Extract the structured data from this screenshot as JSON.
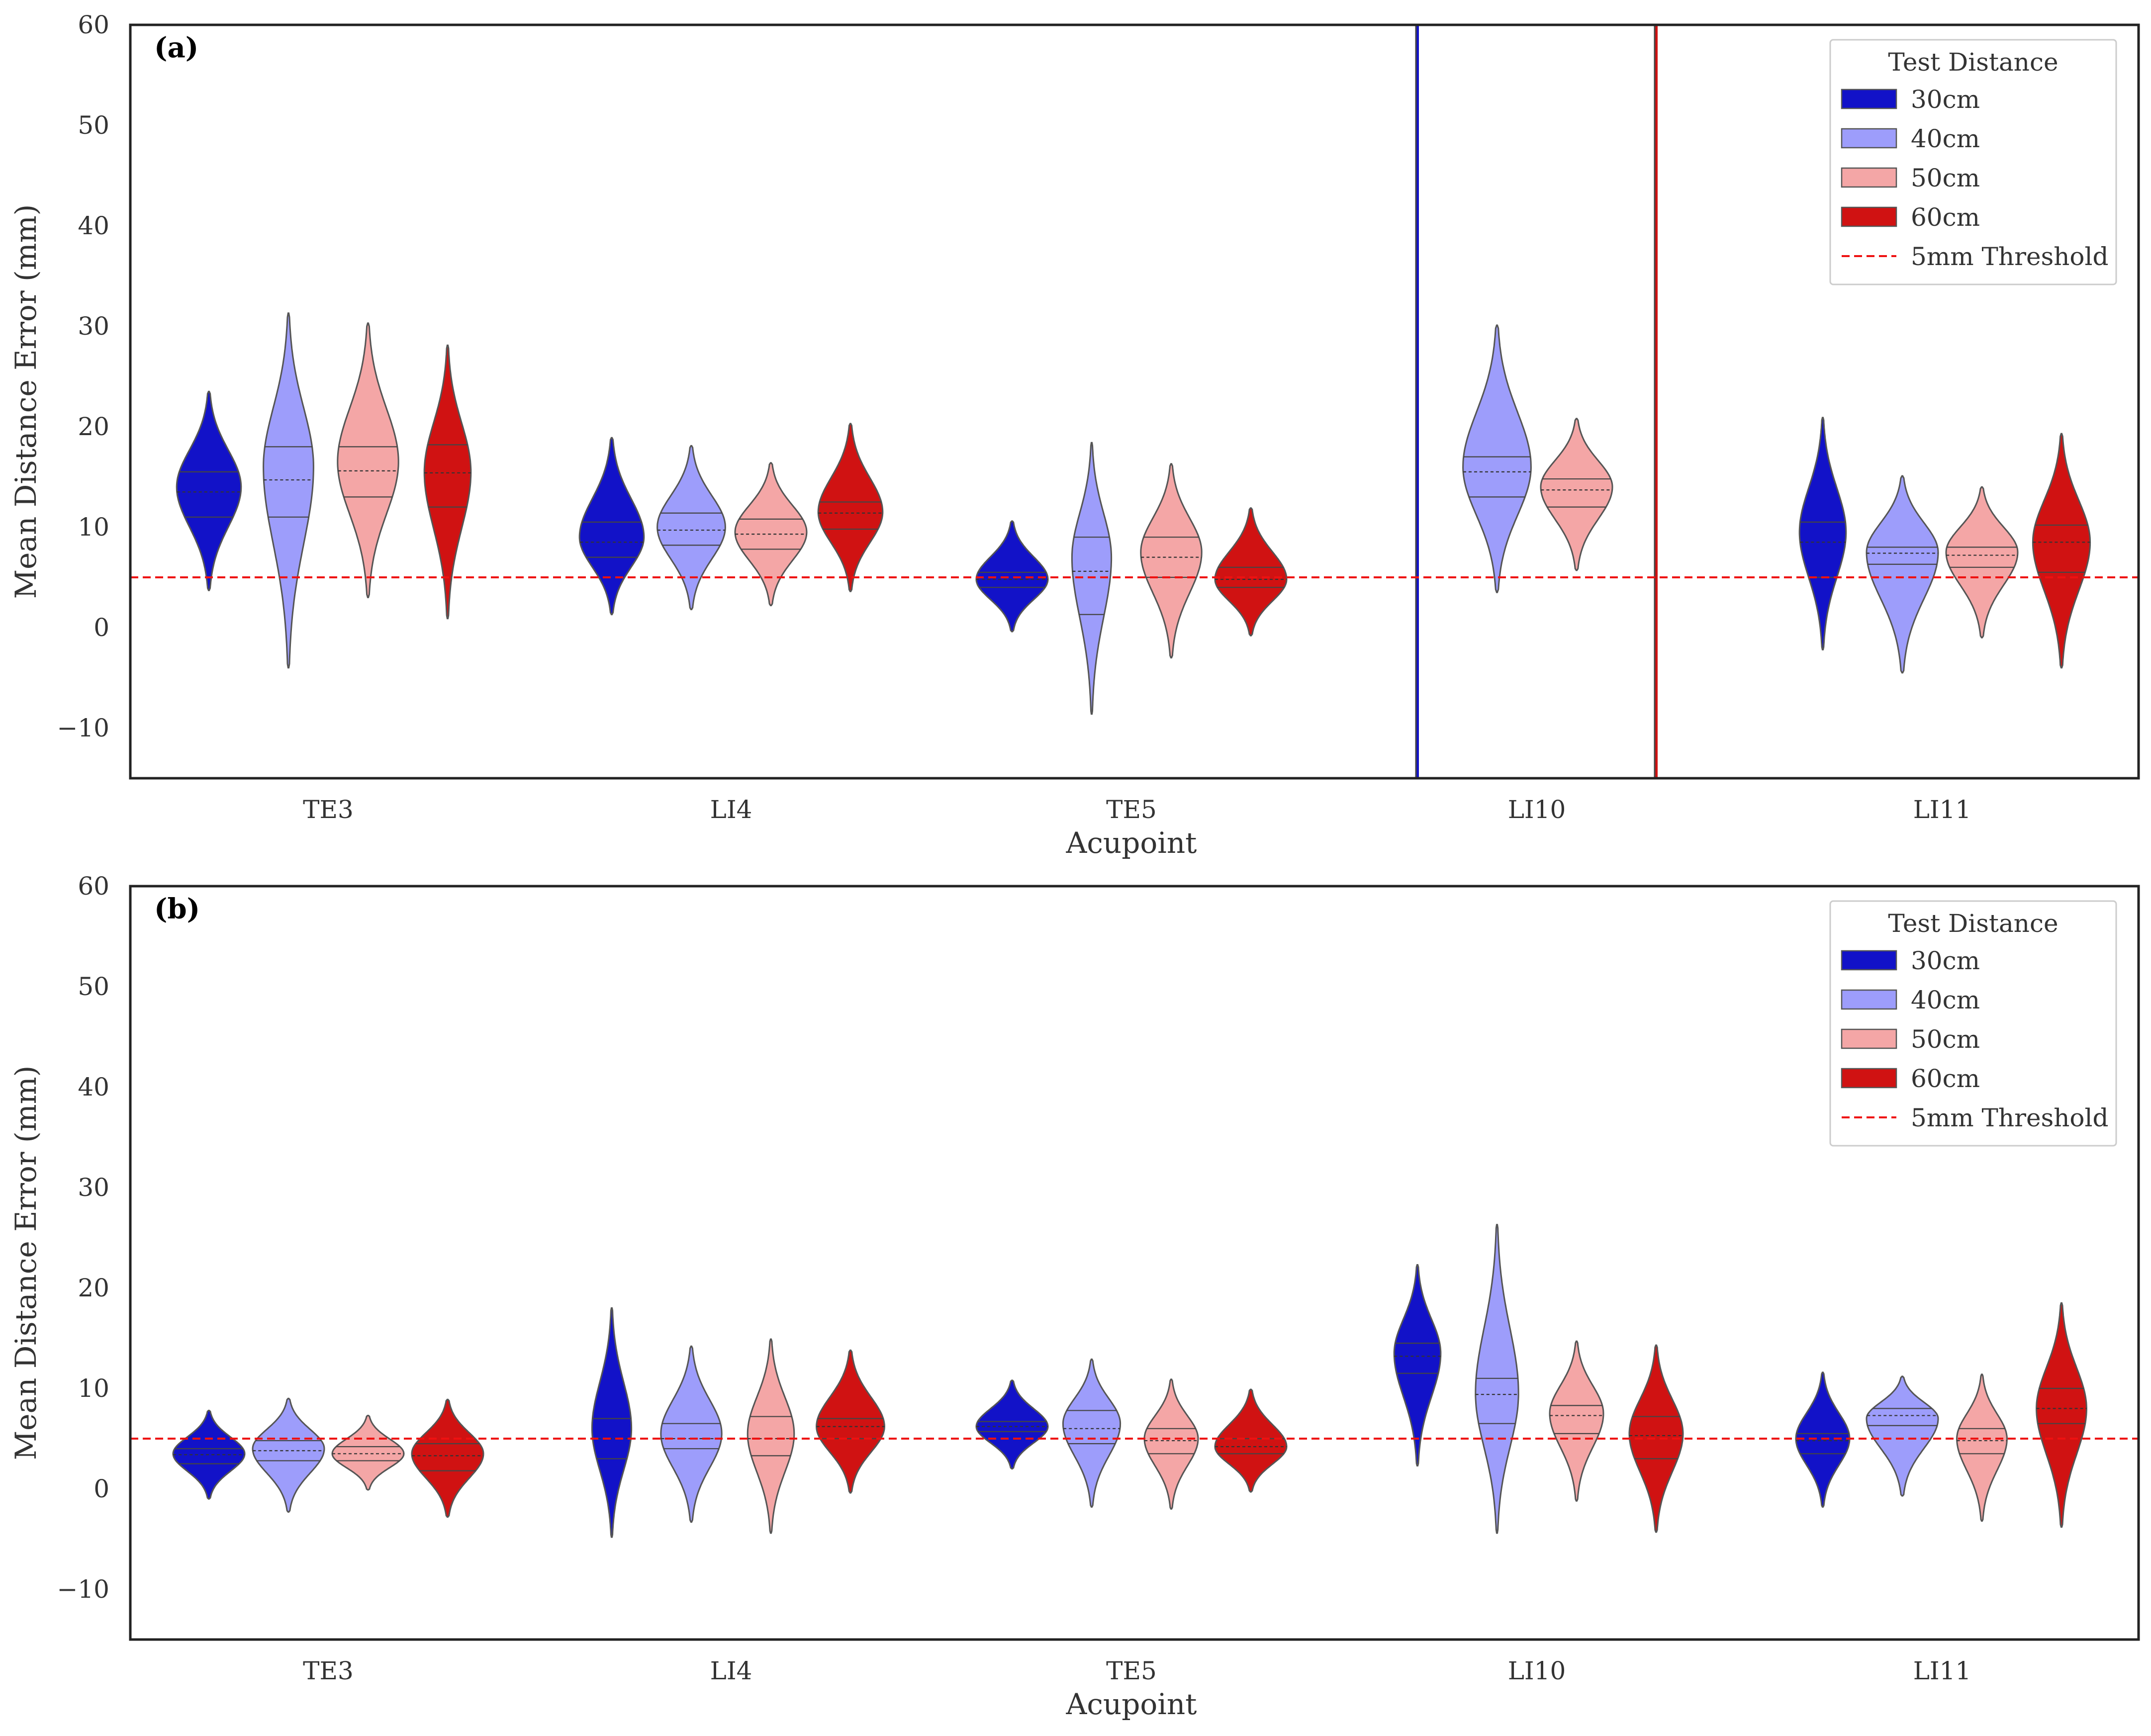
{
  "chart_data": [
    {
      "type": "violin",
      "panel_label": "(a)",
      "xlabel": "Acupoint",
      "ylabel": "Mean Distance Error (mm)",
      "ylim": [
        -15,
        60
      ],
      "yticks": [
        -10,
        0,
        10,
        20,
        30,
        40,
        50,
        60
      ],
      "ytick_labels": [
        "−10",
        "0",
        "10",
        "20",
        "30",
        "40",
        "50",
        "60"
      ],
      "categories": [
        "TE3",
        "LI4",
        "TE5",
        "LI10",
        "LI11"
      ],
      "threshold": {
        "label": "5mm Threshold",
        "value": 5
      },
      "legend": {
        "title": "Test Distance",
        "position": "top-right"
      },
      "series": [
        {
          "name": "30cm",
          "color": "#1212c8",
          "values": [
            {
              "min": 3.7,
              "q1": 11,
              "median": 13.5,
              "q3": 15.5,
              "max": 23.5,
              "peak": 14,
              "width": 0.9
            },
            {
              "min": 1.3,
              "q1": 7,
              "median": 8.5,
              "q3": 10.5,
              "max": 18.9,
              "peak": 9,
              "width": 0.9
            },
            {
              "min": -0.4,
              "q1": 4,
              "median": 4.8,
              "q3": 5.5,
              "max": 10.6,
              "peak": 4.8,
              "width": 1.0
            },
            {
              "min": -15,
              "q1": null,
              "median": null,
              "q3": null,
              "max": 60,
              "peak": null,
              "width": 0.05,
              "note": "degenerate (line)"
            },
            {
              "min": -2.2,
              "q1": 5,
              "median": 8.5,
              "q3": 10.5,
              "max": 20.9,
              "peak": 9.5,
              "width": 0.65
            }
          ]
        },
        {
          "name": "40cm",
          "color": "#9d9dfb",
          "values": [
            {
              "min": -4,
              "q1": 11,
              "median": 14.7,
              "q3": 18,
              "max": 31.3,
              "peak": 16,
              "width": 0.7
            },
            {
              "min": 1.8,
              "q1": 8.2,
              "median": 9.7,
              "q3": 11.4,
              "max": 18.1,
              "peak": 10,
              "width": 0.95
            },
            {
              "min": -8.6,
              "q1": 1.3,
              "median": 5.6,
              "q3": 9,
              "max": 18.4,
              "peak": 7,
              "width": 0.55
            },
            {
              "min": 3.5,
              "q1": 13,
              "median": 15.5,
              "q3": 17,
              "max": 30.1,
              "peak": 16,
              "width": 0.95
            },
            {
              "min": -4.5,
              "q1": 6.3,
              "median": 7.4,
              "q3": 8,
              "max": 15.1,
              "peak": 7.5,
              "width": 1.0
            }
          ]
        },
        {
          "name": "50cm",
          "color": "#f4a6a6",
          "values": [
            {
              "min": 3,
              "q1": 13,
              "median": 15.6,
              "q3": 18,
              "max": 30.3,
              "peak": 16.5,
              "width": 0.85
            },
            {
              "min": 2.2,
              "q1": 7.8,
              "median": 9.3,
              "q3": 10.8,
              "max": 16.4,
              "peak": 9.5,
              "width": 1.0
            },
            {
              "min": -3,
              "q1": 5,
              "median": 7,
              "q3": 9,
              "max": 16.3,
              "peak": 7.5,
              "width": 0.85
            },
            {
              "min": 5.7,
              "q1": 12,
              "median": 13.7,
              "q3": 14.8,
              "max": 20.8,
              "peak": 14,
              "width": 1.0
            },
            {
              "min": -1,
              "q1": 6,
              "median": 7.2,
              "q3": 8,
              "max": 14,
              "peak": 7.5,
              "width": 1.0
            }
          ]
        },
        {
          "name": "60cm",
          "color": "#d01212",
          "values": [
            {
              "min": 0.9,
              "q1": 12,
              "median": 15.4,
              "q3": 18.2,
              "max": 28.1,
              "peak": 15.5,
              "width": 0.65
            },
            {
              "min": 3.6,
              "q1": 9.8,
              "median": 11.4,
              "q3": 12.5,
              "max": 20.3,
              "peak": 11.5,
              "width": 0.9
            },
            {
              "min": -0.8,
              "q1": 4,
              "median": 4.8,
              "q3": 6,
              "max": 11.9,
              "peak": 4.8,
              "width": 1.0
            },
            {
              "min": -15,
              "q1": null,
              "median": null,
              "q3": null,
              "max": 60,
              "peak": null,
              "width": 0.05,
              "note": "degenerate (line)"
            },
            {
              "min": -4,
              "q1": 5.5,
              "median": 8.5,
              "q3": 10.2,
              "max": 19.3,
              "peak": 8.5,
              "width": 0.8
            }
          ]
        }
      ]
    },
    {
      "type": "violin",
      "panel_label": "(b)",
      "xlabel": "Acupoint",
      "ylabel": "Mean Distance Error (mm)",
      "ylim": [
        -15,
        60
      ],
      "yticks": [
        -10,
        0,
        10,
        20,
        30,
        40,
        50,
        60
      ],
      "ytick_labels": [
        "−10",
        "0",
        "10",
        "20",
        "30",
        "40",
        "50",
        "60"
      ],
      "categories": [
        "TE3",
        "LI4",
        "TE5",
        "LI10",
        "LI11"
      ],
      "threshold": {
        "label": "5mm Threshold",
        "value": 5
      },
      "legend": {
        "title": "Test Distance",
        "position": "top-right"
      },
      "series": [
        {
          "name": "30cm",
          "color": "#1212c8",
          "values": [
            {
              "min": -1,
              "q1": 2.5,
              "median": 3.4,
              "q3": 4,
              "max": 7.8,
              "peak": 3.5,
              "width": 1.0
            },
            {
              "min": -4.8,
              "q1": 3,
              "median": 5,
              "q3": 7,
              "max": 18,
              "peak": 6,
              "width": 0.55
            },
            {
              "min": 2,
              "q1": 5.7,
              "median": 6.2,
              "q3": 6.7,
              "max": 10.8,
              "peak": 6.2,
              "width": 1.0
            },
            {
              "min": 2.3,
              "q1": 11.5,
              "median": 13.2,
              "q3": 14.5,
              "max": 22.3,
              "peak": 13.5,
              "width": 0.65
            },
            {
              "min": -1.8,
              "q1": 3.5,
              "median": 4.8,
              "q3": 5.5,
              "max": 11.6,
              "peak": 5,
              "width": 0.75
            }
          ]
        },
        {
          "name": "40cm",
          "color": "#9d9dfb",
          "values": [
            {
              "min": -2.3,
              "q1": 2.8,
              "median": 3.8,
              "q3": 4.8,
              "max": 9,
              "peak": 4,
              "width": 1.0
            },
            {
              "min": -3.3,
              "q1": 4,
              "median": 5,
              "q3": 6.5,
              "max": 14.2,
              "peak": 5.5,
              "width": 0.85
            },
            {
              "min": -1.8,
              "q1": 4.5,
              "median": 6,
              "q3": 7.8,
              "max": 12.9,
              "peak": 6.5,
              "width": 0.8
            },
            {
              "min": -4.4,
              "q1": 6.5,
              "median": 9.4,
              "q3": 11,
              "max": 26.3,
              "peak": 9.5,
              "width": 0.6
            },
            {
              "min": -0.7,
              "q1": 6.3,
              "median": 7.3,
              "q3": 8,
              "max": 11.2,
              "peak": 7,
              "width": 1.0
            }
          ]
        },
        {
          "name": "50cm",
          "color": "#f4a6a6",
          "values": [
            {
              "min": -0.1,
              "q1": 2.8,
              "median": 3.5,
              "q3": 4.2,
              "max": 7.3,
              "peak": 3.5,
              "width": 1.0
            },
            {
              "min": -4.4,
              "q1": 3.3,
              "median": 5,
              "q3": 7.2,
              "max": 14.9,
              "peak": 5.5,
              "width": 0.65
            },
            {
              "min": -2,
              "q1": 3.5,
              "median": 4.8,
              "q3": 6,
              "max": 10.9,
              "peak": 5,
              "width": 0.75
            },
            {
              "min": -1.2,
              "q1": 5.5,
              "median": 7.3,
              "q3": 8.3,
              "max": 14.7,
              "peak": 7.5,
              "width": 0.75
            },
            {
              "min": -3.2,
              "q1": 3.5,
              "median": 4.8,
              "q3": 6,
              "max": 11.4,
              "peak": 5,
              "width": 0.7
            }
          ]
        },
        {
          "name": "60cm",
          "color": "#d01212",
          "values": [
            {
              "min": -2.8,
              "q1": 1.8,
              "median": 3.3,
              "q3": 4.5,
              "max": 8.9,
              "peak": 3.5,
              "width": 1.0
            },
            {
              "min": -0.4,
              "q1": 5,
              "median": 6.2,
              "q3": 7,
              "max": 13.8,
              "peak": 6.2,
              "width": 0.95
            },
            {
              "min": -0.3,
              "q1": 3.5,
              "median": 4.2,
              "q3": 5,
              "max": 9.9,
              "peak": 4.2,
              "width": 1.0
            },
            {
              "min": -4.3,
              "q1": 3,
              "median": 5.3,
              "q3": 7.2,
              "max": 14.3,
              "peak": 5.5,
              "width": 0.75
            },
            {
              "min": -3.8,
              "q1": 6.5,
              "median": 8,
              "q3": 10,
              "max": 18.5,
              "peak": 8,
              "width": 0.7
            }
          ]
        }
      ]
    }
  ]
}
